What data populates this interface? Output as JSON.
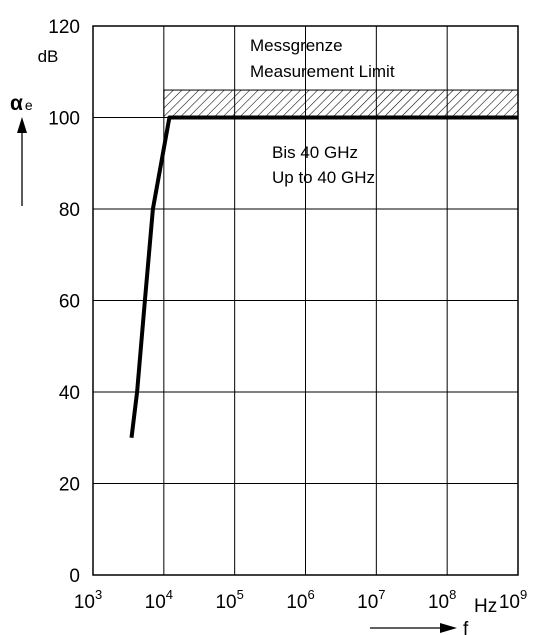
{
  "chart_data": {
    "type": "line",
    "title": "",
    "xlabel": "f",
    "x_unit": "Hz",
    "ylabel": {
      "symbol": "α",
      "subscript": "e"
    },
    "y_unit": "dB",
    "x_scale": "log",
    "xlim": [
      1000,
      1000000000
    ],
    "ylim": [
      0,
      120
    ],
    "grid": true,
    "y_ticks": [
      {
        "value": 0,
        "label": "0"
      },
      {
        "value": 20,
        "label": "20"
      },
      {
        "value": 40,
        "label": "40"
      },
      {
        "value": 60,
        "label": "60"
      },
      {
        "value": 80,
        "label": "80"
      },
      {
        "value": 100,
        "label": "100"
      },
      {
        "value": 120,
        "label": "120"
      }
    ],
    "x_ticks": [
      {
        "value": 1000,
        "base": "10",
        "exp": "3"
      },
      {
        "value": 10000,
        "base": "10",
        "exp": "4"
      },
      {
        "value": 100000,
        "base": "10",
        "exp": "5"
      },
      {
        "value": 1000000,
        "base": "10",
        "exp": "6"
      },
      {
        "value": 10000000,
        "base": "10",
        "exp": "7"
      },
      {
        "value": 100000000,
        "base": "10",
        "exp": "8"
      },
      {
        "value": 1000000000,
        "base": "10",
        "exp": "9"
      }
    ],
    "series": [
      {
        "color": "#000000",
        "points": [
          {
            "x": 3500,
            "y": 30
          },
          {
            "x": 4200,
            "y": 40
          },
          {
            "x": 5400,
            "y": 60
          },
          {
            "x": 7000,
            "y": 80
          },
          {
            "x": 12000,
            "y": 100
          },
          {
            "x": 1000000000,
            "y": 100
          }
        ]
      }
    ],
    "measurement_limit_band": {
      "x_from": 10000,
      "x_to": 1000000000,
      "y_from": 100,
      "y_to": 106
    },
    "annotations": {
      "limit_de": "Messgrenze",
      "limit_en": "Measurement Limit",
      "range_de": "Bis 40 GHz",
      "range_en": "Up to 40 GHz"
    }
  }
}
